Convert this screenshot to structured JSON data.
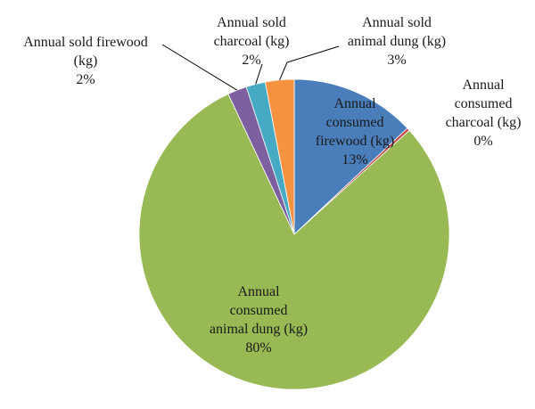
{
  "chart_data": {
    "type": "pie",
    "title": "",
    "slices": [
      {
        "label": "Annual consumed firewood (kg)",
        "value": 13.0,
        "percent_label": "13%",
        "color": "#4a7ebb"
      },
      {
        "label": "Annual consumed charcoal (kg)",
        "value": 0.3,
        "percent_label": "0%",
        "color": "#be4b48"
      },
      {
        "label": "Annual consumed animal dung (kg)",
        "value": 79.7,
        "percent_label": "80%",
        "color": "#98b954"
      },
      {
        "label": "Annual sold firewood (kg)",
        "value": 2.0,
        "percent_label": "2%",
        "color": "#7d60a0"
      },
      {
        "label": "Annual sold charcoal (kg)",
        "value": 2.0,
        "percent_label": "2%",
        "color": "#46aac5"
      },
      {
        "label": "Annual sold animal dung (kg)",
        "value": 3.0,
        "percent_label": "3%",
        "color": "#f69240"
      }
    ],
    "legend": "none",
    "labels": "data labels with leader lines"
  }
}
